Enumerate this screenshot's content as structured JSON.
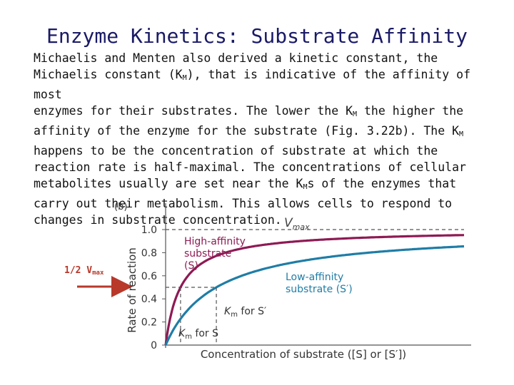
{
  "slide": {
    "title": "Enzyme Kinetics: Substrate Affinity",
    "lines": [
      "Michaelis and Menten also derived a kinetic constant, the",
      [
        "Michaelis constant (K",
        "M",
        "), that is indicative of the affinity of most"
      ],
      [
        "enzymes for their substrates. The lower the K",
        "M",
        " the higher the"
      ],
      [
        "affinity of the enzyme for the substrate (Fig. 3.22b). The K",
        "M",
        ""
      ],
      "happens to be the concentration of substrate at which the",
      "reaction rate is half-maximal. The concentrations of cellular",
      [
        "metabolites usually are set near the K",
        "M",
        "s of the enzymes that"
      ],
      "carry out their metabolism. This allows cells to respond to",
      "changes in substrate concentration."
    ],
    "half_vmax_label": {
      "main": "1/2 V",
      "sub": "max"
    },
    "colors": {
      "title": "#1a1a66",
      "annotation": "#b8382a",
      "high_affinity": "#8e1a54",
      "low_affinity": "#1f7da6",
      "axis_text": "#333333",
      "dashed": "#555555"
    }
  },
  "chart_data": {
    "type": "line",
    "panel_label": "(b)",
    "xlabel": "Concentration of substrate ([S] or [S′])",
    "ylabel": "Rate of reaction",
    "ylim": [
      0,
      1.0
    ],
    "yticks": [
      "0",
      "0.2",
      "0.4",
      "0.6",
      "0.8",
      "1.0"
    ],
    "ytick_values": [
      0,
      0.2,
      0.4,
      0.6,
      0.8,
      1.0
    ],
    "xlim": [
      0,
      10
    ],
    "vmax": 1.0,
    "vmax_label": {
      "main": "V",
      "sub": "max"
    },
    "series": [
      {
        "name": "High-affinity substrate (S)",
        "label_lines": [
          "High-affinity",
          "substrate",
          "(S)"
        ],
        "km": 0.5,
        "km_label": {
          "main": "K",
          "sub": "m",
          "rest": " for S"
        },
        "color": "#8e1a54"
      },
      {
        "name": "Low-affinity substrate (S′)",
        "label_lines": [
          "Low-affinity",
          "substrate (S′)"
        ],
        "km": 1.7,
        "km_label": {
          "main": "K",
          "sub": "m",
          "rest": " for S′"
        },
        "color": "#1f7da6"
      }
    ],
    "half_max": 0.5,
    "grid": false
  }
}
